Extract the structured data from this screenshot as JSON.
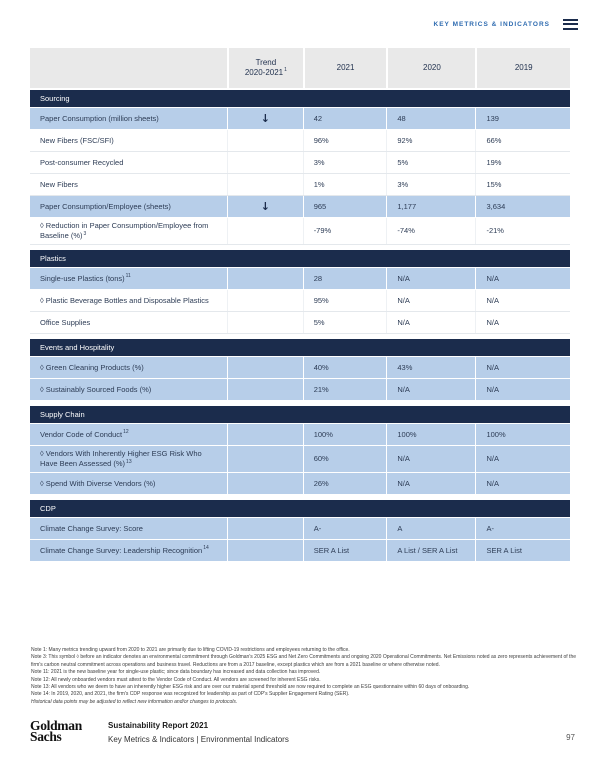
{
  "header": {
    "section_label": "KEY METRICS & INDICATORS"
  },
  "colors": {
    "navy": "#1b2c4c",
    "row_blue": "#b7cee9",
    "header_gray": "#e9e9e9",
    "link_blue": "#2e6bb0"
  },
  "table": {
    "columns": {
      "trend_line1": "Trend",
      "trend_line2": "2020-2021",
      "trend_sup": "1",
      "y2021": "2021",
      "y2020": "2020",
      "y2019": "2019"
    },
    "sections": [
      {
        "title": "Sourcing",
        "rows": [
          {
            "label": "Paper Consumption (million sheets)",
            "trend": "↓",
            "v2021": "42",
            "v2020": "48",
            "v2019": "139",
            "hl": true
          },
          {
            "label": "New Fibers (FSC/SFI)",
            "v2021": "96%",
            "v2020": "92%",
            "v2019": "66%",
            "hl": false
          },
          {
            "label": "Post-consumer Recycled",
            "v2021": "3%",
            "v2020": "5%",
            "v2019": "19%",
            "hl": false
          },
          {
            "label": "New Fibers",
            "v2021": "1%",
            "v2020": "3%",
            "v2019": "15%",
            "hl": false
          },
          {
            "label": "Paper Consumption/Employee (sheets)",
            "trend": "↓",
            "v2021": "965",
            "v2020": "1,177",
            "v2019": "3,634",
            "hl": true
          },
          {
            "label": "◊ Reduction in Paper Consumption/Employee from Baseline (%)",
            "sup": "3",
            "v2021": "-79%",
            "v2020": "-74%",
            "v2019": "-21%",
            "hl": false
          }
        ]
      },
      {
        "title": "Plastics",
        "rows": [
          {
            "label": "Single-use Plastics (tons)",
            "sup": "11",
            "v2021": "28",
            "v2020": "N/A",
            "v2019": "N/A",
            "hl": true
          },
          {
            "label": "◊ Plastic Beverage Bottles and Disposable Plastics",
            "v2021": "95%",
            "v2020": "N/A",
            "v2019": "N/A",
            "hl": false
          },
          {
            "label": "Office Supplies",
            "v2021": "5%",
            "v2020": "N/A",
            "v2019": "N/A",
            "hl": false
          }
        ]
      },
      {
        "title": "Events and Hospitality",
        "rows": [
          {
            "label": "◊ Green Cleaning Products (%)",
            "v2021": "40%",
            "v2020": "43%",
            "v2019": "N/A",
            "hl": true
          },
          {
            "label": "◊ Sustainably Sourced Foods (%)",
            "v2021": "21%",
            "v2020": "N/A",
            "v2019": "N/A",
            "hl": true
          }
        ]
      },
      {
        "title": "Supply Chain",
        "rows": [
          {
            "label": "Vendor Code of Conduct",
            "sup": "12",
            "v2021": "100%",
            "v2020": "100%",
            "v2019": "100%",
            "hl": true
          },
          {
            "label": "◊ Vendors With Inherently Higher ESG Risk Who Have Been Assessed (%)",
            "sup": "13",
            "v2021": "60%",
            "v2020": "N/A",
            "v2019": "N/A",
            "hl": true
          },
          {
            "label": "◊ Spend With Diverse Vendors (%)",
            "v2021": "26%",
            "v2020": "N/A",
            "v2019": "N/A",
            "hl": true
          }
        ]
      },
      {
        "title": "CDP",
        "rows": [
          {
            "label": "Climate Change Survey: Score",
            "v2021": "A-",
            "v2020": "A",
            "v2019": "A-",
            "hl": true
          },
          {
            "label": "Climate Change Survey: Leadership Recognition",
            "sup": "14",
            "v2021": "SER A List",
            "v2020": "A List / SER A List",
            "v2019": "SER A List",
            "hl": true
          }
        ]
      }
    ]
  },
  "notes": {
    "lines": [
      {
        "text": "Note 1: Many metrics trending upward from 2020 to 2021 are primarily due to lifting COVID-19 restrictions and employees returning to the office.",
        "italic": false
      },
      {
        "text": "Note 3: This symbol ◊ before an indicator denotes an environmental commitment through Goldman's 2025 ESG and Net Zero Commitments and ongoing 2020 Operational Commitments. Net Emissions noted as zero represents achievement of the firm's carbon neutral commitment across operations and business travel. Reductions are from a 2017 baseline, except plastics which are from a 2021 baseline or where otherwise noted.",
        "italic": false
      },
      {
        "text": "Note 11: 2021 is the new baseline year for single-use plastic; since data boundary has increased and data collection has improved.",
        "italic": false
      },
      {
        "text": "Note 12: All newly onboarded vendors must attest to the Vendor Code of Conduct. All vendors are screened for inherent ESG risks.",
        "italic": false
      },
      {
        "text": "Note 13: All vendors who we deem to have an inherently higher ESG risk and are over our material spend threshold are now required to complete an ESG questionnaire within 60 days of onboarding.",
        "italic": false
      },
      {
        "text": "Note 14: In 2019, 2020, and 2021, the firm's CDP response was recognized for leadership as part of CDP's Supplier Engagement Rating (SER).",
        "italic": false
      },
      {
        "text": "Historical data points may be adjusted to reflect new information and/or changes to protocols.",
        "italic": true
      }
    ]
  },
  "footer": {
    "logo_line1": "Goldman",
    "logo_line2": "Sachs",
    "report_title": "Sustainability Report 2021",
    "breadcrumb": "Key Metrics & Indicators | Environmental Indicators",
    "page_number": "97"
  }
}
